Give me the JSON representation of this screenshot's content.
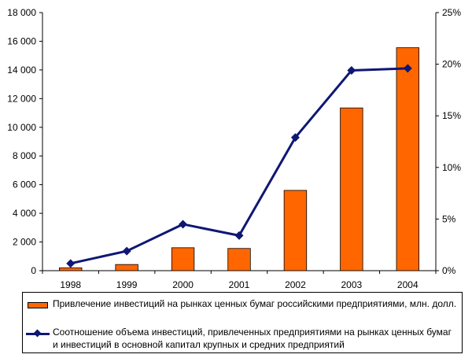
{
  "chart_data": {
    "type": "bar+line",
    "categories": [
      "1998",
      "1999",
      "2000",
      "2001",
      "2002",
      "2003",
      "2004"
    ],
    "series": [
      {
        "name": "Привлечение инвестиций на рынках ценных бумаг российскими предприятиями, млн. долл.",
        "type": "bar",
        "axis": "left",
        "values": [
          200,
          430,
          1600,
          1550,
          5600,
          11350,
          15550
        ]
      },
      {
        "name": "Соотношение объема инвестиций, привлеченных предприятиями на рынках ценных бумаг и инвестиций в основной капитал крупных и средних предприятий",
        "type": "line",
        "axis": "right",
        "values": [
          0.7,
          1.9,
          4.5,
          3.4,
          12.9,
          19.4,
          19.6
        ]
      }
    ],
    "y_left": {
      "ylim": [
        0,
        18000
      ],
      "ticks": [
        0,
        2000,
        4000,
        6000,
        8000,
        10000,
        12000,
        14000,
        16000,
        18000
      ],
      "tick_labels": [
        "0",
        "2 000",
        "4 000",
        "6 000",
        "8 000",
        "10 000",
        "12 000",
        "14 000",
        "16 000",
        "18 000"
      ]
    },
    "y_right": {
      "ylim": [
        0,
        25
      ],
      "ticks": [
        0,
        5,
        10,
        15,
        20,
        25
      ],
      "tick_labels": [
        "0%",
        "5%",
        "10%",
        "15%",
        "20%",
        "25%"
      ]
    },
    "colors": {
      "bar": "#ff6600",
      "line": "#0f1773",
      "axis": "#000000"
    },
    "grid": false,
    "legend_position": "bottom",
    "title": "",
    "xlabel": "",
    "ylabel": ""
  },
  "legend": {
    "bar_label": "Привлечение инвестиций на рынках ценных бумаг российскими предприятиями, млн. долл.",
    "line_label": "Соотношение объема инвестиций, привлеченных предприятиями на рынках ценных бумаг и инвестиций в основной капитал крупных и средних предприятий"
  }
}
